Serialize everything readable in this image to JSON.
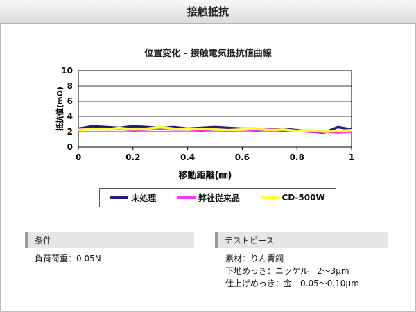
{
  "header": {
    "title": "接触抵抗"
  },
  "panels": {
    "conditions": {
      "heading": "条件",
      "lines": [
        "負荷荷重：0.05N"
      ]
    },
    "test_piece": {
      "heading": "テストピース",
      "lines": [
        "素材：りん青銅",
        "下地めっき：ニッケル　2～3μm",
        "仕上げめっき：金　0.05～0.10μm"
      ]
    }
  },
  "chart_data": {
    "type": "line",
    "title": "位置変化 - 接触電気抵抗値曲線",
    "xlabel": "移動距離(㎜)",
    "ylabel": "抵抗値(mΩ)",
    "xlim": [
      0,
      1
    ],
    "ylim": [
      0,
      10
    ],
    "x_ticks": [
      "0",
      "0.2",
      "0.4",
      "0.6",
      "0.8",
      "1"
    ],
    "y_ticks": [
      "0",
      "2",
      "4",
      "6",
      "8",
      "10"
    ],
    "grid": true,
    "legend_position": "bottom",
    "x": [
      0,
      0.05,
      0.1,
      0.15,
      0.2,
      0.25,
      0.3,
      0.35,
      0.4,
      0.45,
      0.5,
      0.55,
      0.6,
      0.65,
      0.7,
      0.75,
      0.8,
      0.85,
      0.9,
      0.95,
      1
    ],
    "series": [
      {
        "name": "未処理",
        "color": "#1f1f7a",
        "values": [
          2.4,
          2.7,
          2.6,
          2.5,
          2.7,
          2.6,
          2.5,
          2.6,
          2.4,
          2.5,
          2.6,
          2.5,
          2.4,
          2.4,
          2.3,
          2.4,
          2.2,
          2.0,
          1.9,
          2.6,
          2.3
        ]
      },
      {
        "name": "弊社従来品",
        "color": "#ff33ff",
        "values": [
          2.3,
          2.4,
          2.3,
          2.4,
          2.2,
          2.3,
          2.4,
          2.3,
          2.3,
          2.2,
          2.3,
          2.2,
          2.3,
          2.2,
          2.3,
          2.2,
          2.1,
          2.0,
          2.0,
          1.9,
          2.0
        ]
      },
      {
        "name": "CD-500W",
        "color": "#ffff33",
        "values": [
          2.2,
          2.4,
          2.3,
          2.5,
          2.3,
          2.4,
          2.6,
          2.4,
          2.3,
          2.4,
          2.3,
          2.2,
          2.3,
          2.4,
          2.2,
          2.3,
          2.1,
          2.2,
          2.0,
          2.1,
          2.2
        ]
      }
    ]
  }
}
